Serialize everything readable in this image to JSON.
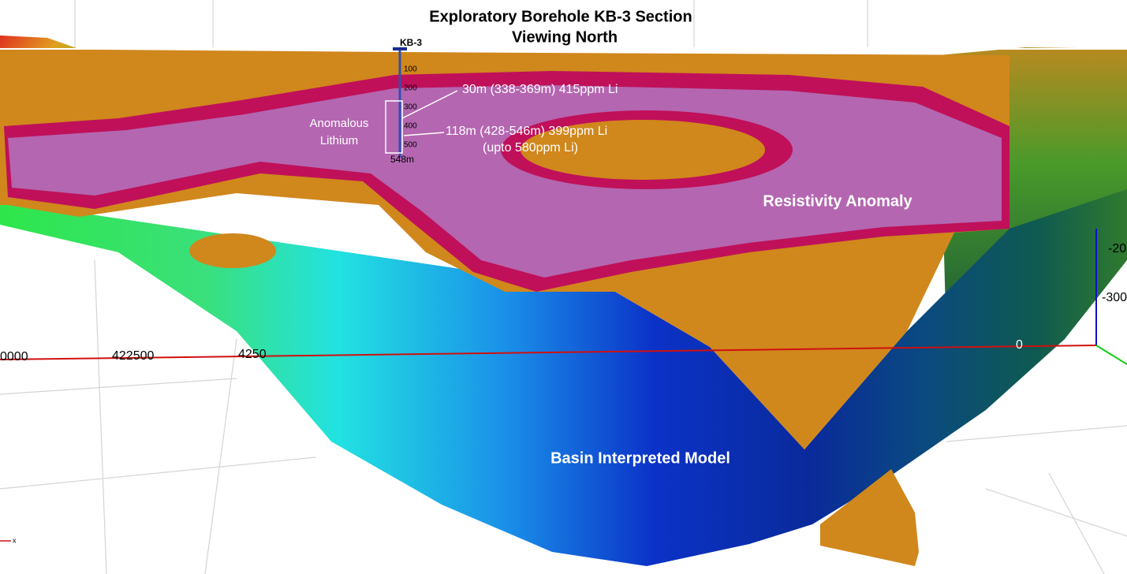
{
  "title": [
    "Exploratory Borehole KB-3 Section",
    "Viewing North"
  ],
  "borehole": {
    "name": "KB-3",
    "depth_ticks": [
      "100",
      "200",
      "300",
      "400",
      "500"
    ],
    "total_depth": "548m"
  },
  "zone_label": [
    "Anomalous",
    "Lithium"
  ],
  "intercepts": [
    {
      "text": "30m (338-369m) 415ppm Li"
    },
    {
      "text": "118m (428-546m) 399ppm Li",
      "note": "(upto 580ppm Li)"
    }
  ],
  "labels": {
    "resistivity": "Resistivity Anomaly",
    "basin": "Basin Interpreted Model"
  },
  "axes": {
    "x_labels": [
      "0000",
      "422500",
      "4250",
      "0"
    ],
    "z_labels": [
      "-20",
      "-300"
    ],
    "corner": "x"
  }
}
